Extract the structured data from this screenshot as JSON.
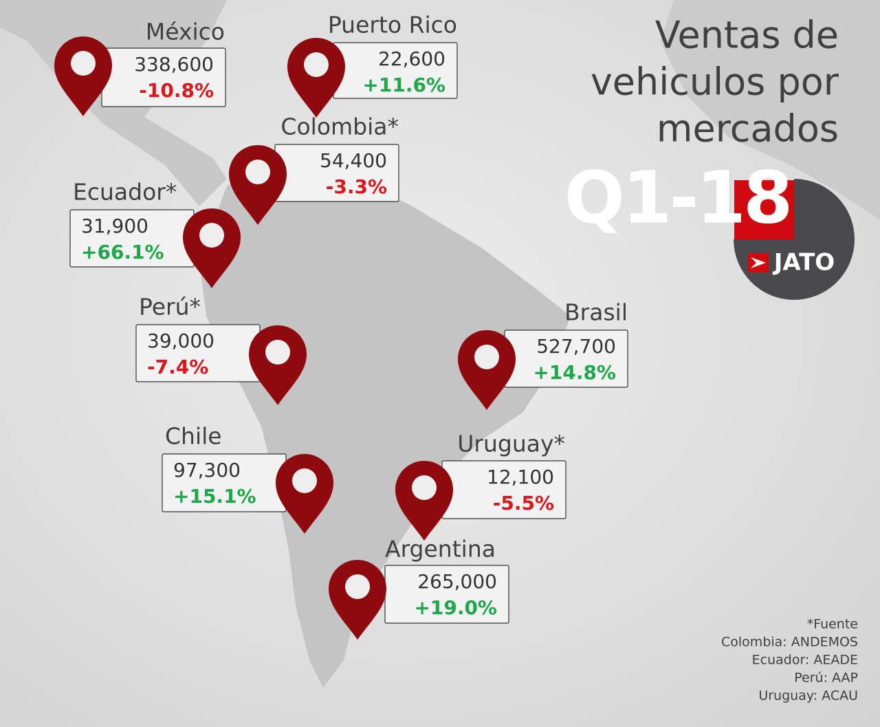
{
  "title": [
    "Ventas de",
    "vehiculos por",
    "mercados"
  ],
  "period": "Q1-18",
  "logo": "JATO",
  "markets": [
    {
      "name": "México",
      "sales": "338,600",
      "change": "-10.8%"
    },
    {
      "name": "Puerto Rico",
      "sales": "22,600",
      "change": "+11.6%"
    },
    {
      "name": "Colombia*",
      "sales": "54,400",
      "change": "-3.3%"
    },
    {
      "name": "Ecuador*",
      "sales": "31,900",
      "change": "+66.1%"
    },
    {
      "name": "Perú*",
      "sales": "39,000",
      "change": "-7.4%"
    },
    {
      "name": "Brasil",
      "sales": "527,700",
      "change": "+14.8%"
    },
    {
      "name": "Chile",
      "sales": "97,300",
      "change": "+15.1%"
    },
    {
      "name": "Uruguay*",
      "sales": "12,100",
      "change": "-5.5%"
    },
    {
      "name": "Argentina",
      "sales": "265,000",
      "change": "+19.0%"
    }
  ],
  "footnote": {
    "title": "*Fuente",
    "sources": [
      "Colombia: ANDEMOS",
      "Ecuador: AEADE",
      "Perú: AAP",
      "Uruguay: ACAU"
    ]
  }
}
